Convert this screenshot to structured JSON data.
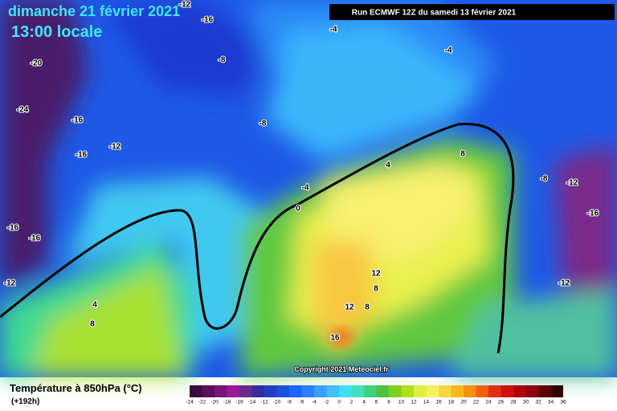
{
  "header": {
    "date": "dimanche 21 février 2021",
    "time": "13:00 locale",
    "run": "Run ECMWF 12Z du samedi 13 février 2021"
  },
  "footer": {
    "title": "Température à 850hPa (°C)",
    "lead": "(+192h)",
    "copyright": "Copyright 2021 Meteociel.fr"
  },
  "contour_labels": [
    -12,
    -16,
    -4,
    -8,
    -20,
    -4,
    -24,
    -16,
    -12,
    -8,
    -16,
    8,
    4,
    -8,
    -12,
    -4,
    0,
    -16,
    -16,
    -16,
    12,
    8,
    -12,
    -12,
    4,
    12,
    8,
    8,
    16
  ],
  "legend": {
    "ticks": [
      -24,
      -22,
      -20,
      -18,
      -16,
      -14,
      -12,
      -10,
      -8,
      -6,
      -4,
      -2,
      0,
      2,
      4,
      6,
      8,
      10,
      12,
      14,
      16,
      18,
      20,
      22,
      24,
      26,
      28,
      30,
      32,
      34,
      36
    ],
    "colors": [
      "#3d0a3d",
      "#5a0f5a",
      "#7a147a",
      "#9a1a9a",
      "#6a2a8a",
      "#3a2aa0",
      "#2040c0",
      "#1a50e0",
      "#1e64ff",
      "#2a80ff",
      "#3aa0ff",
      "#40c0ff",
      "#40e0f0",
      "#40e0c0",
      "#40d080",
      "#50c040",
      "#80d020",
      "#b0e020",
      "#e0f040",
      "#f8f060",
      "#f8d840",
      "#f8b820",
      "#f89010",
      "#f06010",
      "#e03010",
      "#d01010",
      "#b00010",
      "#900010",
      "#600000",
      "#300000"
    ]
  }
}
